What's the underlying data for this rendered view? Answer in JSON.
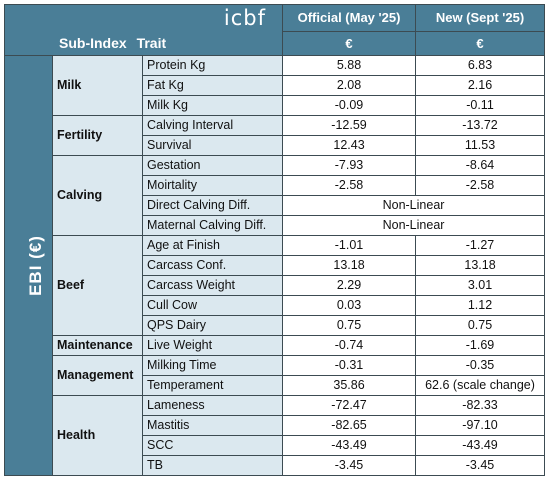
{
  "header": {
    "logo": "icbf",
    "sub_index_label": "Sub-Index",
    "trait_label": "Trait",
    "col_official": "Official (May '25)",
    "col_new": "New (Sept '25)",
    "currency": "€"
  },
  "side_label": "EBI (€)",
  "groups": [
    {
      "name": "Milk",
      "rows": [
        {
          "trait": "Protein Kg",
          "official": "5.88",
          "new": "6.83"
        },
        {
          "trait": "Fat Kg",
          "official": "2.08",
          "new": "2.16"
        },
        {
          "trait": "Milk Kg",
          "official": "-0.09",
          "new": "-0.11"
        }
      ]
    },
    {
      "name": "Fertility",
      "rows": [
        {
          "trait": "Calving Interval",
          "official": "-12.59",
          "new": "-13.72"
        },
        {
          "trait": "Survival",
          "official": "12.43",
          "new": "11.53"
        }
      ]
    },
    {
      "name": "Calving",
      "rows": [
        {
          "trait": "Gestation",
          "official": "-7.93",
          "new": "-8.64"
        },
        {
          "trait": "Moirtality",
          "official": "-2.58",
          "new": "-2.58"
        },
        {
          "trait": "Direct Calving Diff.",
          "merged": "Non-Linear"
        },
        {
          "trait": "Maternal Calving Diff.",
          "merged": "Non-Linear"
        }
      ]
    },
    {
      "name": "Beef",
      "rows": [
        {
          "trait": "Age at Finish",
          "official": "-1.01",
          "new": "-1.27"
        },
        {
          "trait": "Carcass Conf.",
          "official": "13.18",
          "new": "13.18"
        },
        {
          "trait": "Carcass Weight",
          "official": "2.29",
          "new": "3.01"
        },
        {
          "trait": "Cull Cow",
          "official": "0.03",
          "new": "1.12"
        },
        {
          "trait": "QPS Dairy",
          "official": "0.75",
          "new": "0.75"
        }
      ]
    },
    {
      "name": "Maintenance",
      "rows": [
        {
          "trait": "Live Weight",
          "official": "-0.74",
          "new": "-1.69"
        }
      ]
    },
    {
      "name": "Management",
      "rows": [
        {
          "trait": "Milking Time",
          "official": "-0.31",
          "new": "-0.35"
        },
        {
          "trait": "Temperament",
          "official": "35.86",
          "new": "62.6 (scale change)"
        }
      ]
    },
    {
      "name": "Health",
      "rows": [
        {
          "trait": "Lameness",
          "official": "-72.47",
          "new": "-82.33"
        },
        {
          "trait": "Mastitis",
          "official": "-82.65",
          "new": "-97.10"
        },
        {
          "trait": "SCC",
          "official": "-43.49",
          "new": "-43.49"
        },
        {
          "trait": "TB",
          "official": "-3.45",
          "new": "-3.45"
        }
      ]
    }
  ]
}
